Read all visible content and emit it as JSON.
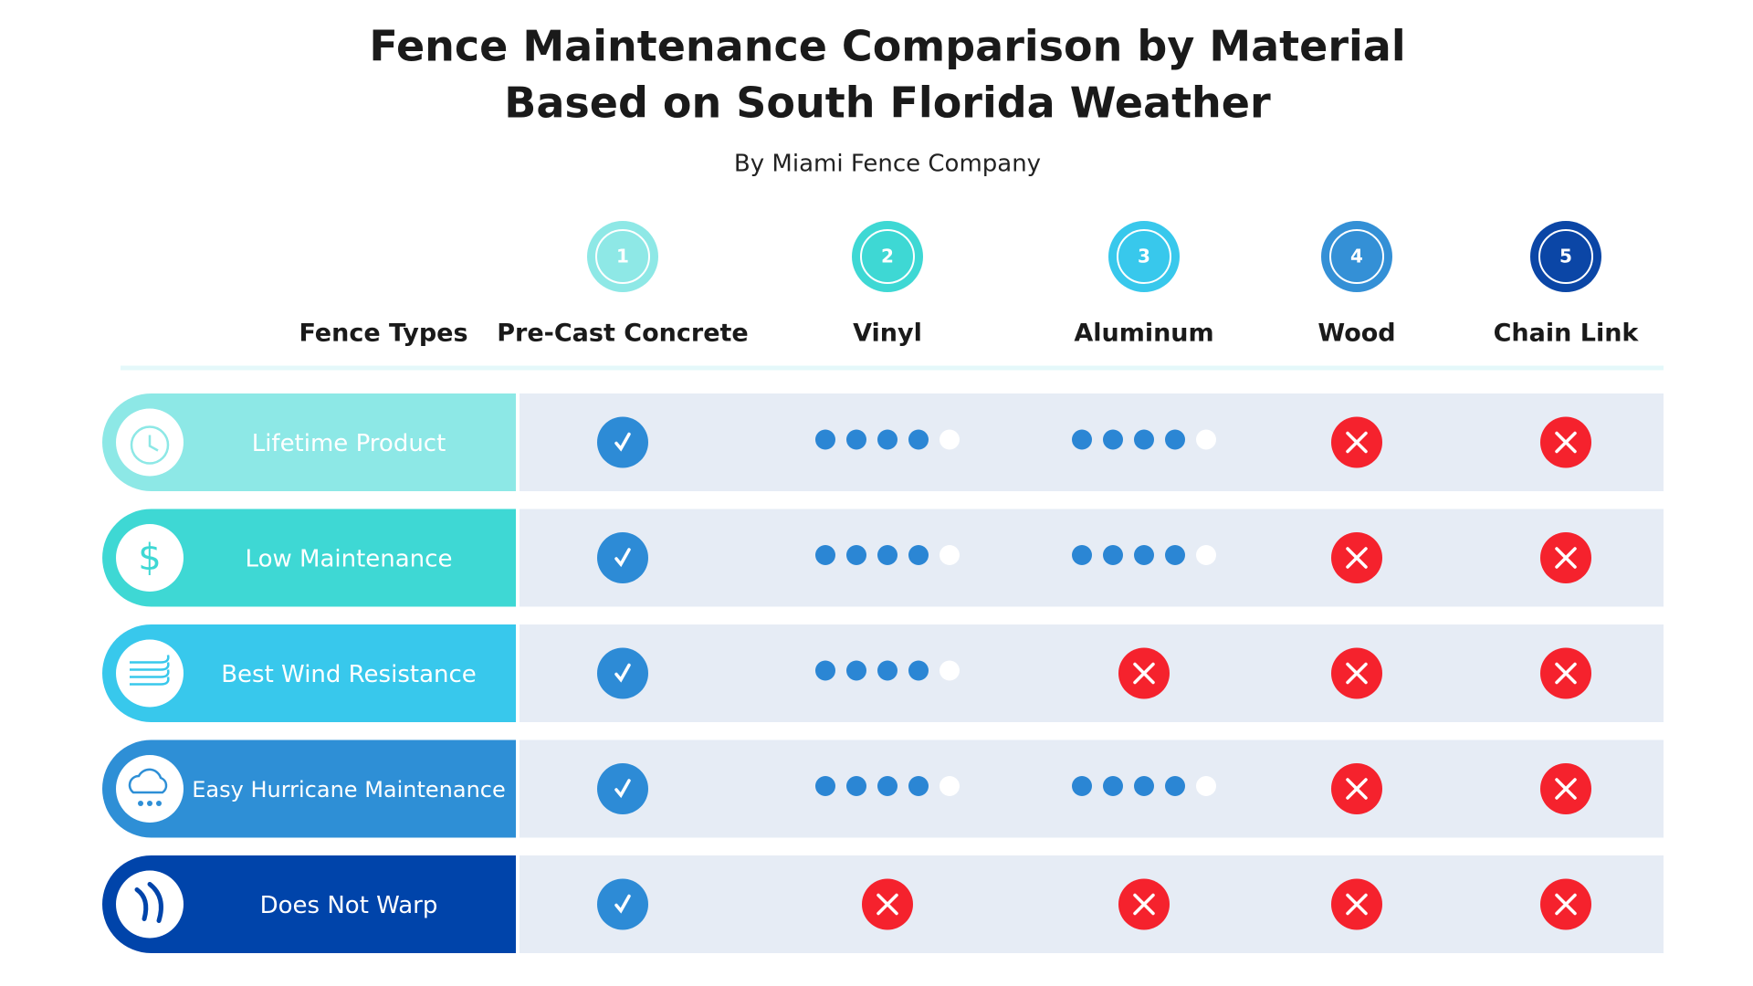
{
  "header": {
    "title_lines": [
      "Fence Maintenance Comparison by Material",
      "Based on South Florida Weather"
    ],
    "subtitle": "By Miami Fence Company"
  },
  "table": {
    "row_header": "Fence Types",
    "rating_max": 5,
    "columns": [
      {
        "number": 1,
        "name": "Pre-Cast Concrete",
        "color": "#8ee8e6"
      },
      {
        "number": 2,
        "name": "Vinyl",
        "color": "#3ed8d4"
      },
      {
        "number": 3,
        "name": "Aluminum",
        "color": "#38c8ec"
      },
      {
        "number": 4,
        "name": "Wood",
        "color": "#3490d6"
      },
      {
        "number": 5,
        "name": "Chain Link",
        "color": "#0b46a6"
      }
    ],
    "rows": [
      {
        "label": "Lifetime Product",
        "color": "#8de8e6",
        "cells": [
          "check",
          4,
          4,
          "cross",
          "cross"
        ]
      },
      {
        "label": "Low Maintenance",
        "color": "#3ed8d4",
        "cells": [
          "check",
          4,
          4,
          "cross",
          "cross"
        ]
      },
      {
        "label": "Best Wind Resistance",
        "color": "#38c8ec",
        "cells": [
          "check",
          4,
          "cross",
          "cross",
          "cross"
        ]
      },
      {
        "label": "Easy Hurricane Maintenance",
        "color": "#2e8fd6",
        "cells": [
          "check",
          4,
          4,
          "cross",
          "cross"
        ]
      },
      {
        "label": "Does Not Warp",
        "color": "#0044aa",
        "cells": [
          "check",
          "cross",
          "cross",
          "cross",
          "cross"
        ]
      }
    ]
  }
}
